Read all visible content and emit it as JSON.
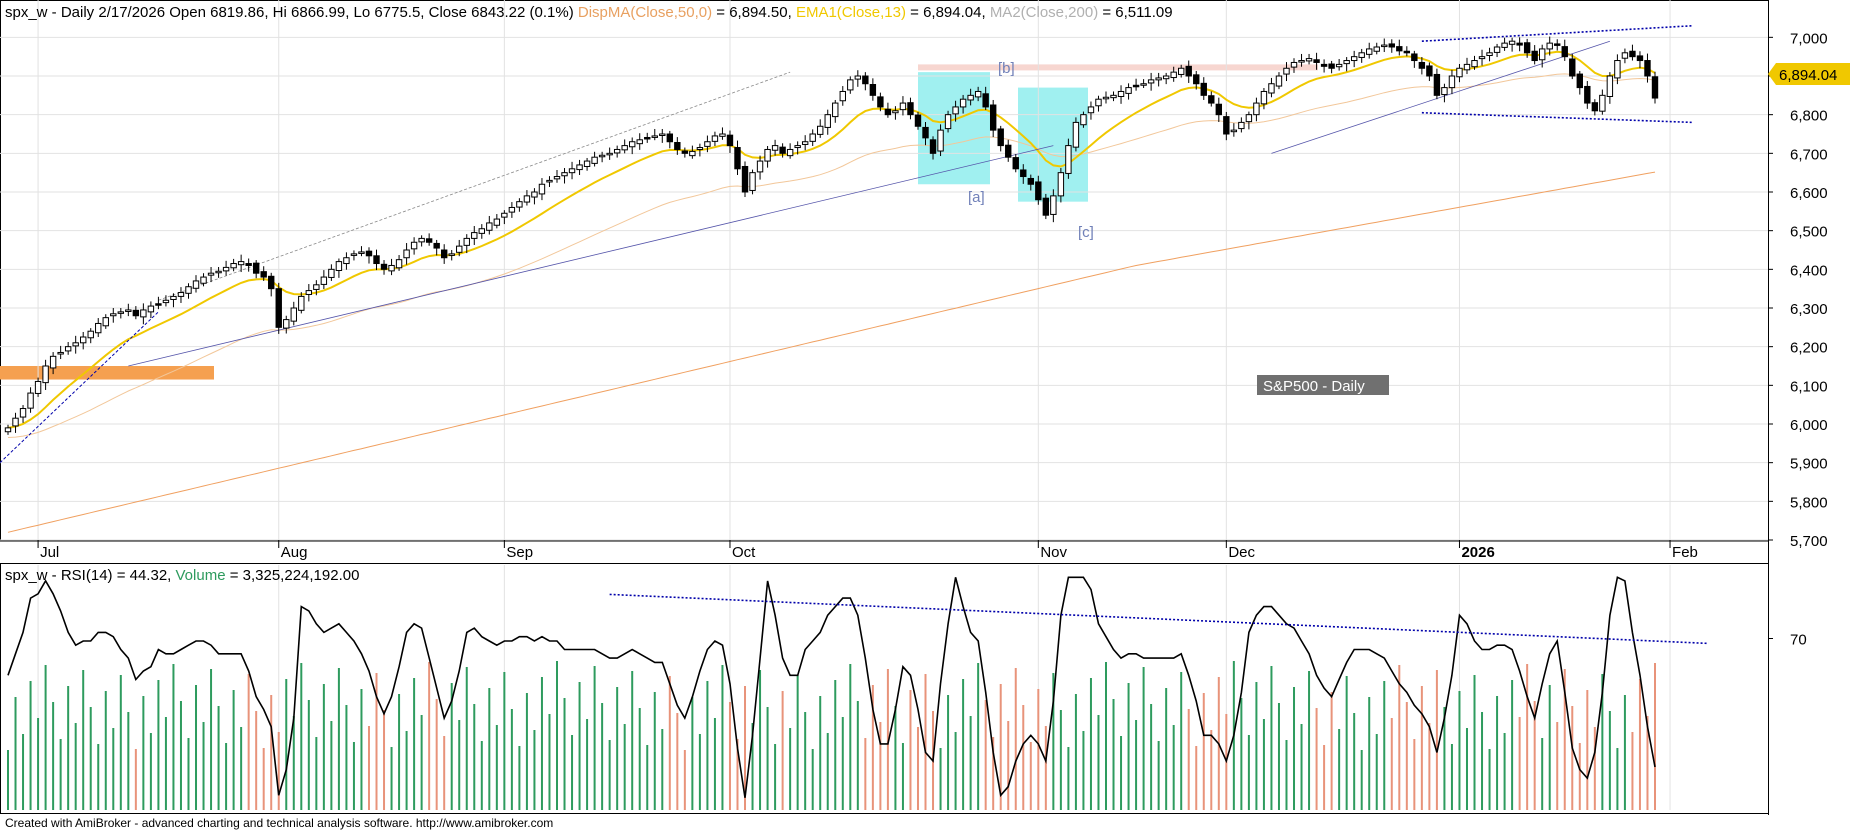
{
  "header": {
    "symbol": "spx_w",
    "date_prefix": " - Daily 2/17/2026 Open 6819.86, Hi 6866.99, Lo 6775.5, Close 6843.22 (0.1%)",
    "disp_label": "DispMA(Close,50,0)",
    "disp_value": " = 6,894.50,",
    "ema_label": "EMA1(Close,13)",
    "ema_value": " = 6,894.04,",
    "ma_label": "MA2(Close,200)",
    "ma_value": " = 6,511.09"
  },
  "lower_header": {
    "text": "spx_w - RSI(14) = 44.32,",
    "volume_label": "Volume",
    "volume_value": " = 3,325,224,192.00"
  },
  "footer": "Created with AmiBroker - advanced charting and technical analysis software. http://www.amibroker.com",
  "badge": "S&P500 - Daily",
  "price_label": "6,894.04",
  "wave_labels": [
    "[a]",
    "[b]",
    "[c]"
  ],
  "colors": {
    "ema": "#f0c800",
    "ma": "#f0a060",
    "disp": "#e8a060",
    "trend_blue": "#0000aa",
    "highlight_cyan": "#a0f0f0",
    "orange_zone": "#f5a050",
    "vol_up": "#2e9b5e",
    "vol_down": "#e8937a",
    "badge_bg": "#707070"
  },
  "chart_data": [
    {
      "type": "candlestick",
      "title": "S&P500 - Daily",
      "ylim": [
        5700,
        7050
      ],
      "y_ticks": [
        5700,
        5800,
        5900,
        6000,
        6100,
        6200,
        6300,
        6400,
        6500,
        6600,
        6700,
        6800,
        6900,
        7000
      ],
      "y_tick_labels": [
        "5,700",
        "5,800",
        "5,900",
        "6,000",
        "6,100",
        "6,200",
        "6,300",
        "6,400",
        "6,500",
        "6,600",
        "6,700",
        "6,800",
        "6,900",
        "7,000"
      ],
      "x_ticks": [
        "Jul",
        "Aug",
        "Sep",
        "Oct",
        "Nov",
        "Dec",
        "2026",
        "Feb"
      ],
      "x_tick_index": [
        4,
        36,
        66,
        96,
        137,
        162,
        193,
        221
      ],
      "closes": [
        5990,
        6015,
        6040,
        6080,
        6110,
        6150,
        6175,
        6185,
        6200,
        6210,
        6225,
        6240,
        6260,
        6275,
        6285,
        6290,
        6295,
        6280,
        6295,
        6305,
        6310,
        6320,
        6330,
        6340,
        6355,
        6370,
        6380,
        6390,
        6395,
        6405,
        6415,
        6420,
        6410,
        6390,
        6380,
        6350,
        6250,
        6270,
        6300,
        6330,
        6345,
        6360,
        6380,
        6400,
        6420,
        6430,
        6440,
        6445,
        6435,
        6415,
        6400,
        6410,
        6425,
        6450,
        6470,
        6480,
        6470,
        6455,
        6430,
        6440,
        6460,
        6480,
        6495,
        6505,
        6520,
        6530,
        6545,
        6560,
        6575,
        6590,
        6600,
        6620,
        6630,
        6640,
        6650,
        6660,
        6670,
        6680,
        6690,
        6695,
        6700,
        6710,
        6720,
        6730,
        6735,
        6740,
        6745,
        6750,
        6730,
        6710,
        6700,
        6705,
        6715,
        6730,
        6745,
        6750,
        6720,
        6660,
        6600,
        6650,
        6680,
        6710,
        6720,
        6700,
        6710,
        6720,
        6730,
        6750,
        6770,
        6800,
        6830,
        6860,
        6890,
        6900,
        6880,
        6850,
        6820,
        6800,
        6810,
        6830,
        6800,
        6770,
        6740,
        6700,
        6760,
        6800,
        6820,
        6840,
        6850,
        6860,
        6820,
        6760,
        6720,
        6690,
        6660,
        6640,
        6620,
        6580,
        6540,
        6590,
        6650,
        6720,
        6780,
        6800,
        6820,
        6840,
        6845,
        6850,
        6860,
        6870,
        6875,
        6880,
        6890,
        6895,
        6900,
        6910,
        6920,
        6900,
        6880,
        6850,
        6830,
        6800,
        6750,
        6760,
        6780,
        6800,
        6830,
        6860,
        6880,
        6900,
        6920,
        6935,
        6940,
        6945,
        6935,
        6925,
        6920,
        6930,
        6940,
        6950,
        6960,
        6970,
        6975,
        6980,
        6975,
        6965,
        6960,
        6940,
        6920,
        6900,
        6850,
        6870,
        6900,
        6920,
        6930,
        6940,
        6950,
        6960,
        6975,
        6985,
        6990,
        6980,
        6960,
        6940,
        6970,
        6985,
        6980,
        6950,
        6900,
        6870,
        6830,
        6810,
        6850,
        6900,
        6940,
        6960,
        6950,
        6940,
        6900,
        6843
      ],
      "rsi_ylim": [
        0,
        100
      ],
      "rsi_ticks": [
        70
      ],
      "series": [
        {
          "name": "EMA1(Close,13)"
        },
        {
          "name": "MA2(Close,200)"
        },
        {
          "name": "DispMA(Close,50,0)"
        },
        {
          "name": "RSI(14)"
        },
        {
          "name": "Volume"
        }
      ]
    }
  ]
}
